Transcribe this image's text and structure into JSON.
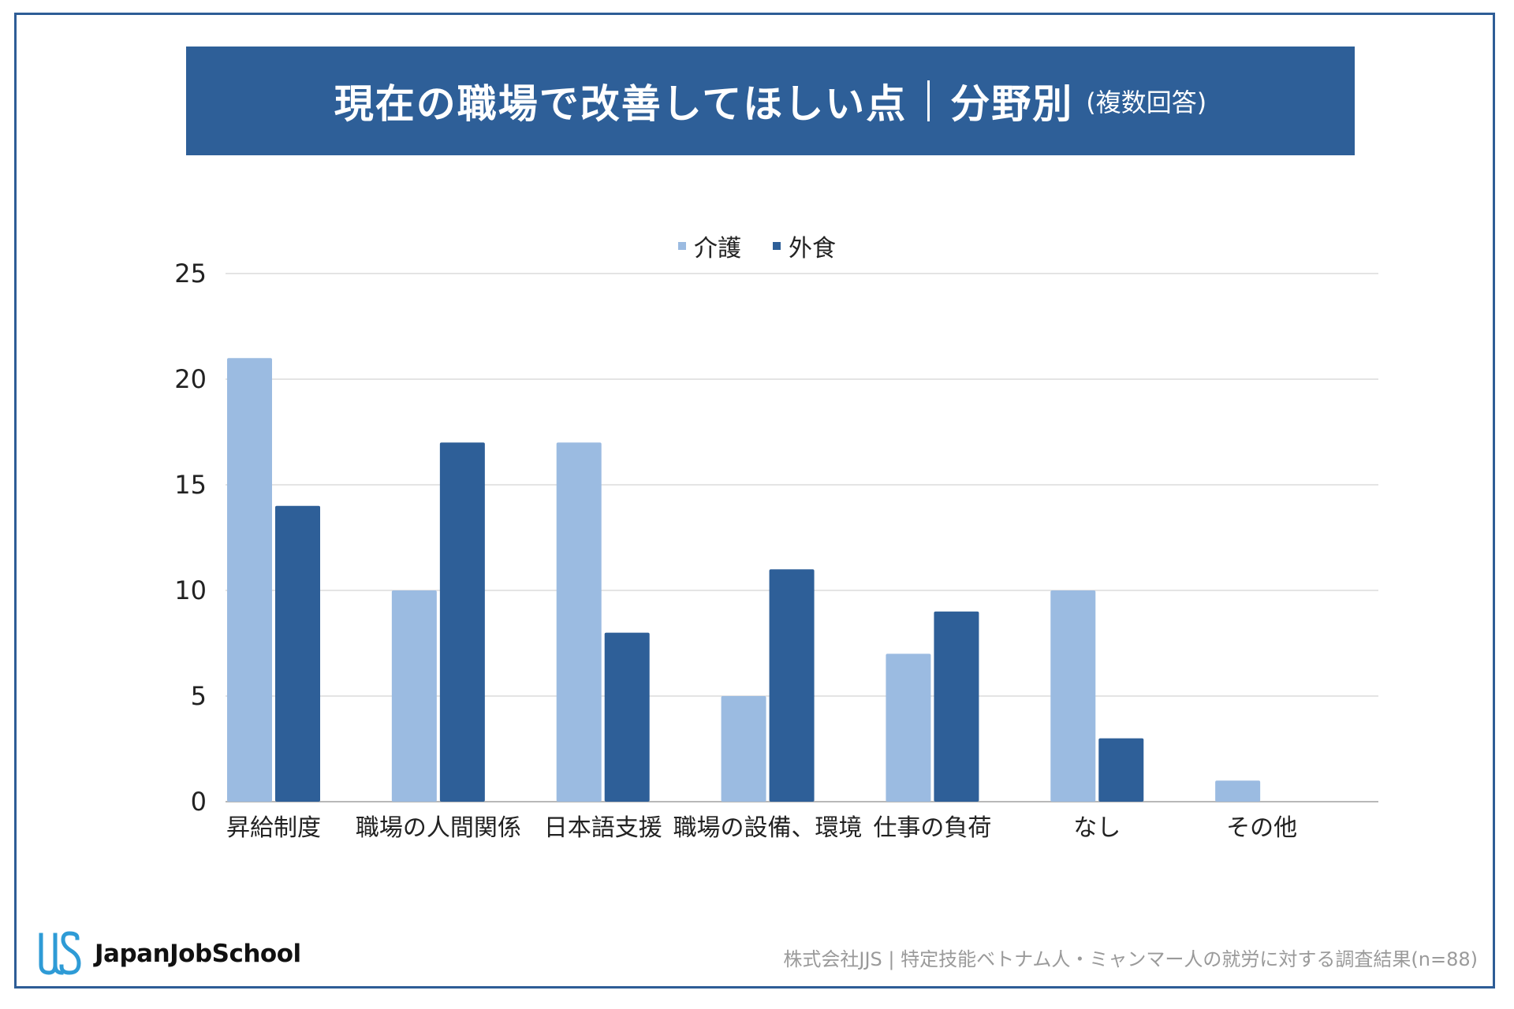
{
  "title": {
    "main": "現在の職場で改善してほしい点",
    "field": "分野別",
    "note": "(複数回答)"
  },
  "colors": {
    "banner": "#2e5f98",
    "frame": "#2e5d96",
    "series_1": "#9bbbe1",
    "series_2": "#2e5f98"
  },
  "footer": {
    "logo_text": "JapanJobSchool",
    "logo_icon": "jjs-logo-icon",
    "source": "株式会社JJS | 特定技能ベトナム人・ミャンマー人の就労に対する調査結果(n=88)"
  },
  "chart_data": {
    "type": "bar",
    "categories": [
      "昇給制度",
      "職場の人間関係",
      "日本語支援",
      "職場の設備、環境",
      "仕事の負荷",
      "なし",
      "その他"
    ],
    "series": [
      {
        "name": "介護",
        "values": [
          21,
          10,
          17,
          5,
          7,
          10,
          1
        ]
      },
      {
        "name": "外食",
        "values": [
          14,
          17,
          8,
          11,
          9,
          3,
          0
        ]
      }
    ],
    "ylim": [
      0,
      25
    ],
    "yticks": [
      0,
      5,
      10,
      15,
      20,
      25
    ],
    "grid": true,
    "legend": "top-center",
    "xlabel": "",
    "ylabel": ""
  }
}
